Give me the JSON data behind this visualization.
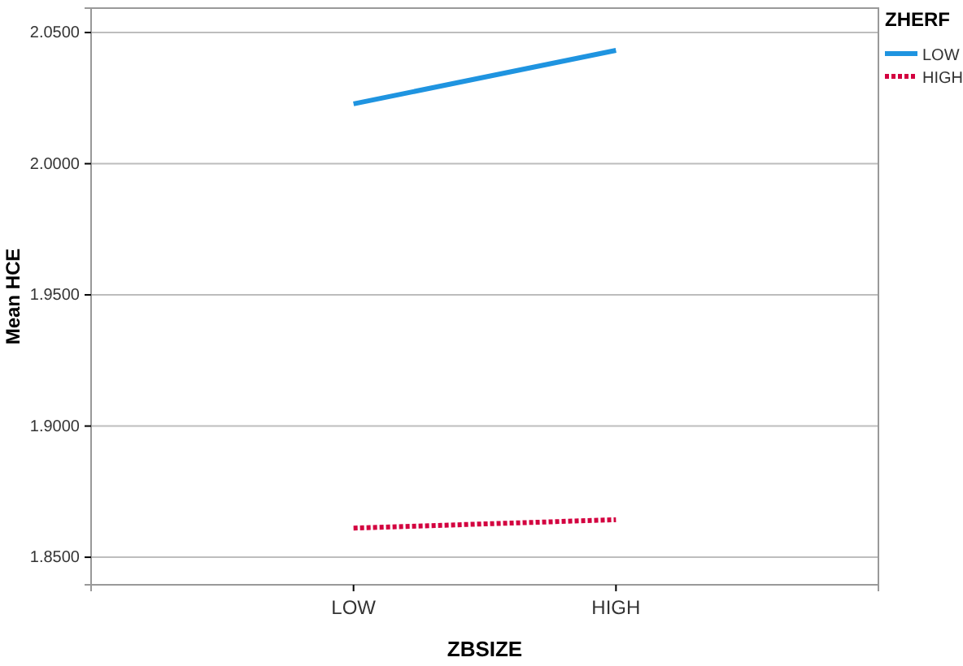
{
  "chart_data": {
    "type": "line",
    "xlabel": "ZBSIZE",
    "ylabel": "Mean HCE",
    "legend_title": "ZHERF",
    "categories": [
      "LOW",
      "HIGH"
    ],
    "series": [
      {
        "name": "LOW",
        "color": "#1f94e0",
        "values": [
          2.0228,
          2.0432
        ],
        "line_style": "solid"
      },
      {
        "name": "HIGH",
        "color": "#d3003f",
        "values": [
          1.8611,
          1.8643
        ],
        "line_style": "dotted"
      }
    ],
    "ylim": [
      1.8395,
      2.0593
    ],
    "yticks": [
      {
        "value": 1.85,
        "label": "1.8500"
      },
      {
        "value": 1.9,
        "label": "1.9000"
      },
      {
        "value": 1.95,
        "label": "1.9500"
      },
      {
        "value": 2.0,
        "label": "2.0000"
      },
      {
        "value": 2.05,
        "label": "2.0500"
      }
    ],
    "grid": "y",
    "legend": "top right"
  }
}
